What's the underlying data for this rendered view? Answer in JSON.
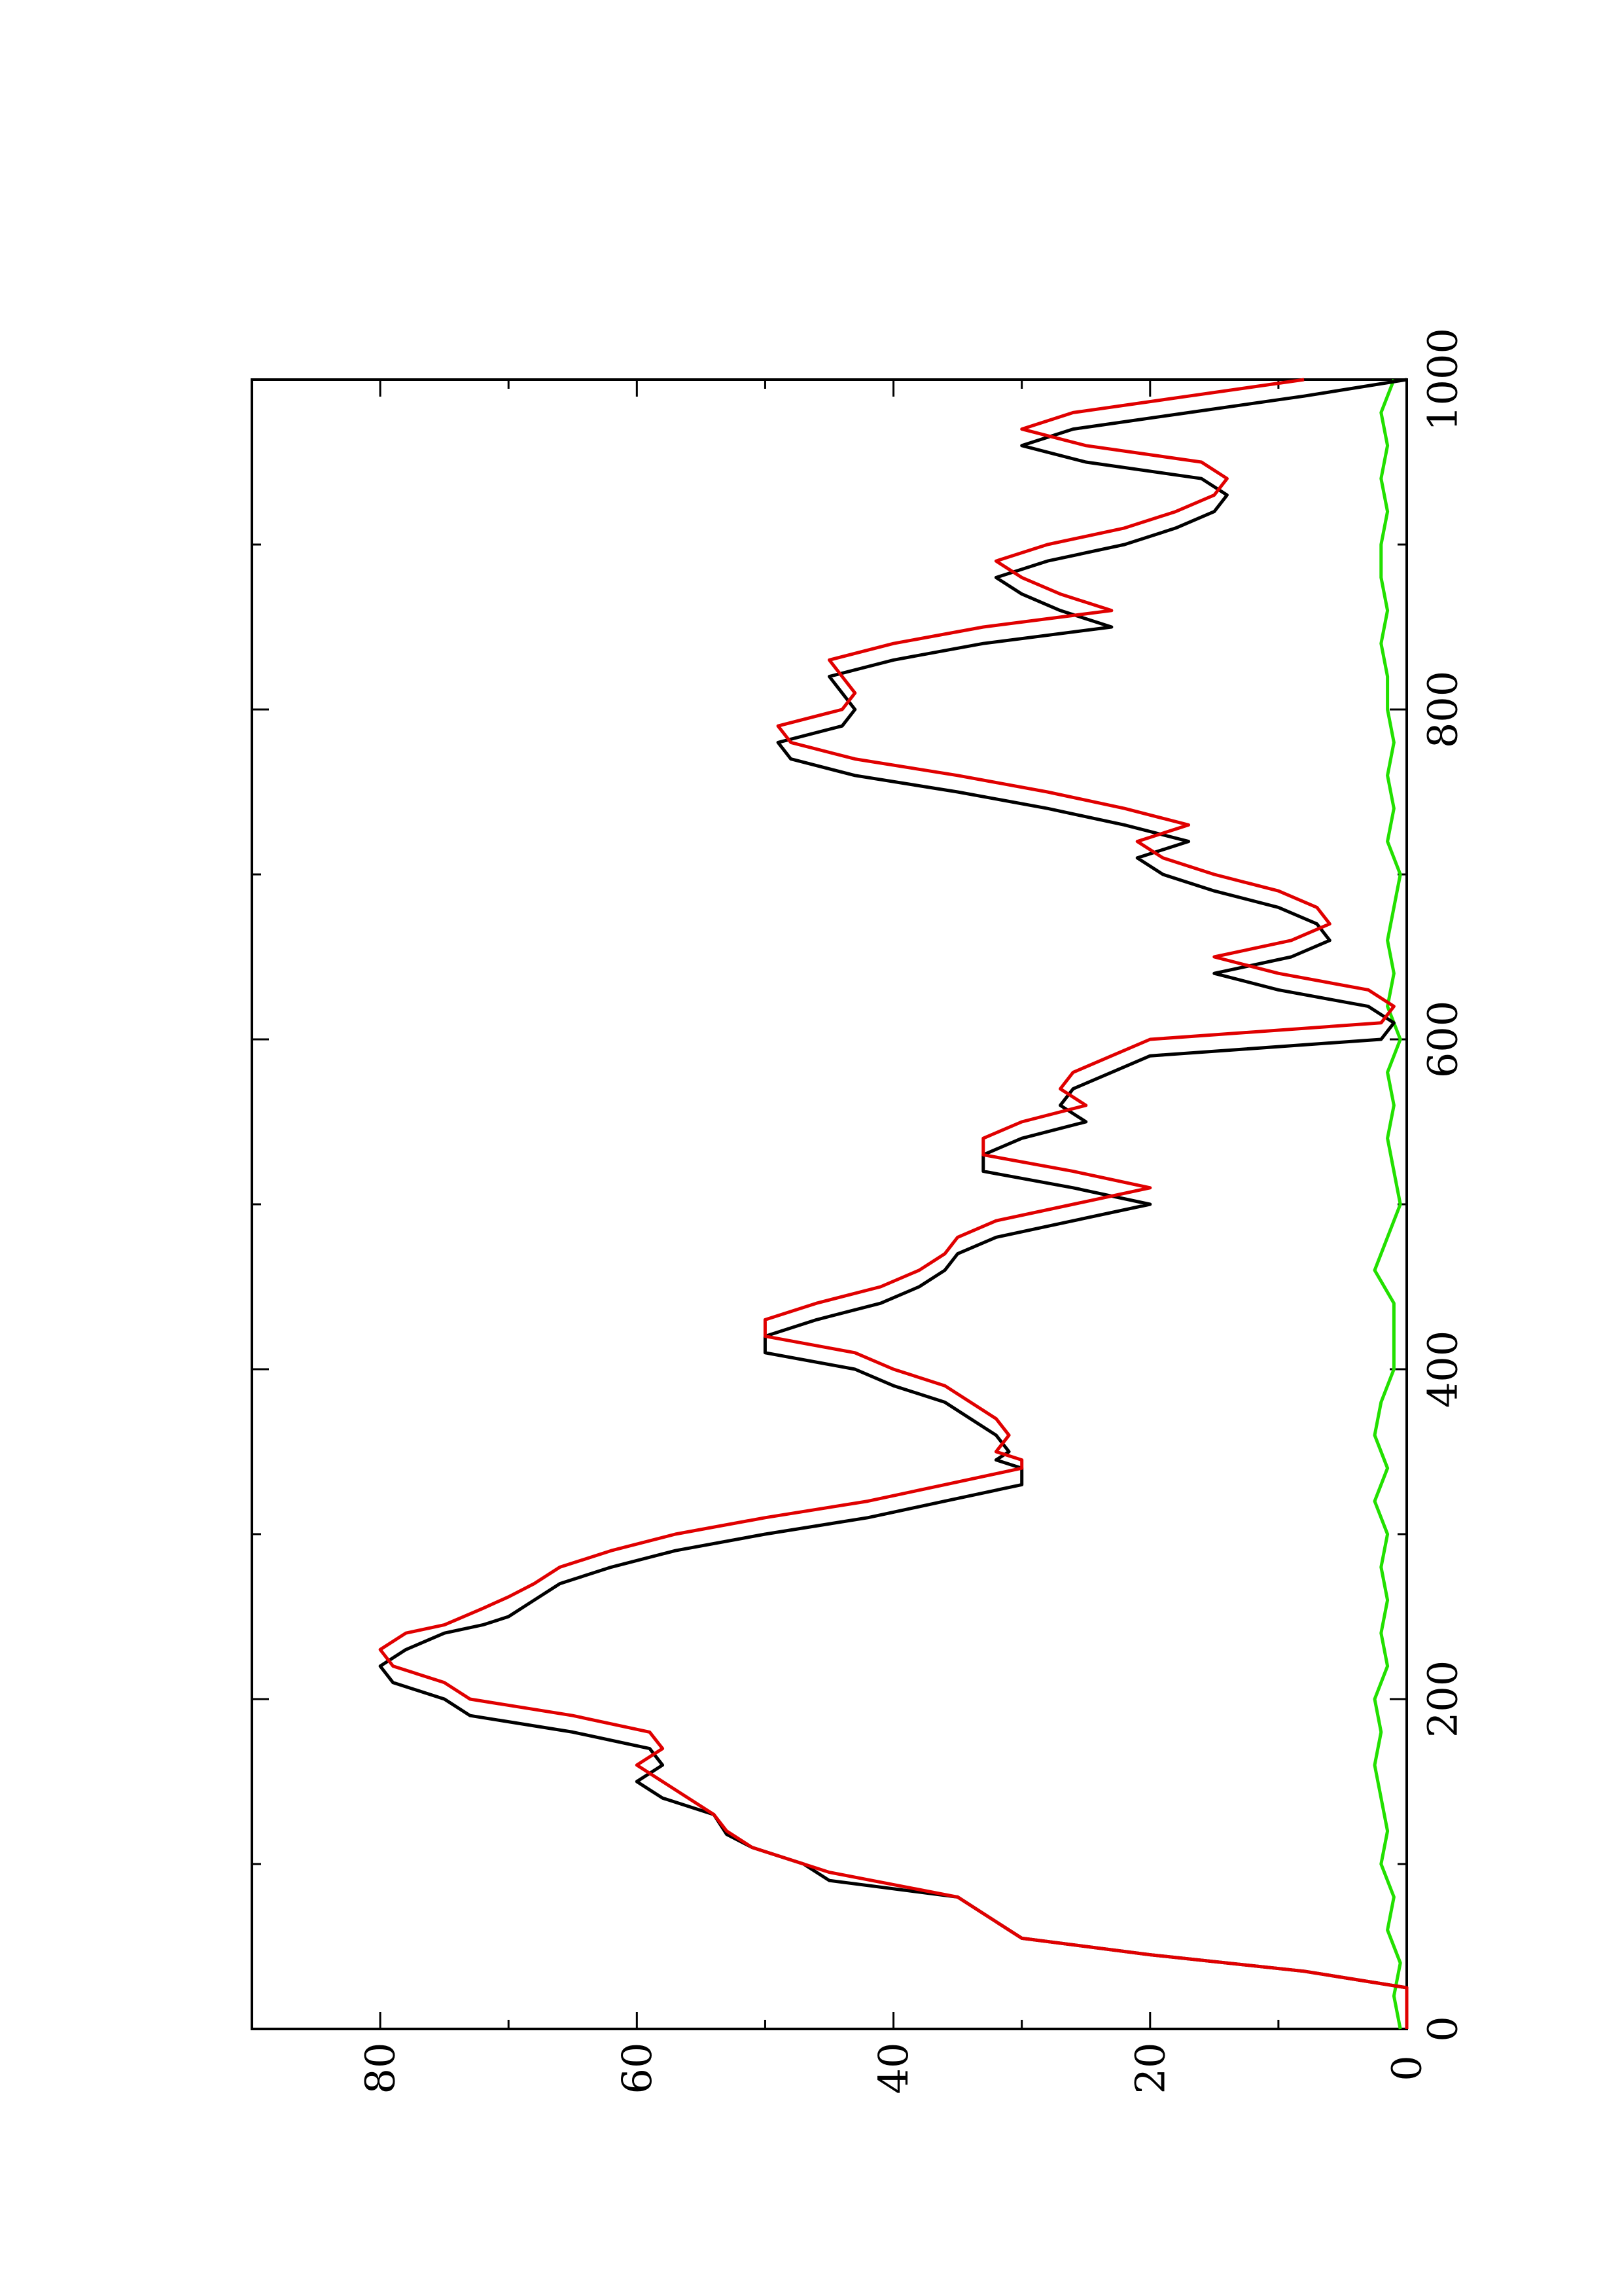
{
  "chart_data": {
    "type": "line",
    "orientation": "rotated 90° counter-clockwise",
    "title": "",
    "xlabel": "",
    "ylabel": "",
    "xlim": [
      0,
      1000
    ],
    "ylim": [
      0,
      90
    ],
    "x_ticks": [
      0,
      200,
      400,
      600,
      800,
      1000
    ],
    "y_ticks": [
      0,
      20,
      40,
      60,
      80
    ],
    "grid": false,
    "legend": "none",
    "colors": {
      "black": "#000000",
      "red": "#e00000",
      "green": "#22e000"
    },
    "series": [
      {
        "color": "#000000",
        "x": [
          0,
          25,
          35,
          45,
          55,
          65,
          80,
          90,
          100,
          110,
          118,
          130,
          140,
          145,
          150,
          160,
          170,
          180,
          190,
          200,
          210,
          220,
          230,
          240,
          245,
          250,
          260,
          270,
          280,
          290,
          300,
          310,
          320,
          330,
          340,
          345,
          350,
          360,
          370,
          380,
          390,
          400,
          410,
          420,
          430,
          440,
          450,
          460,
          470,
          480,
          490,
          500,
          510,
          520,
          530,
          540,
          550,
          560,
          570,
          580,
          590,
          600,
          610,
          620,
          630,
          640,
          650,
          660,
          670,
          680,
          690,
          700,
          710,
          720,
          730,
          740,
          750,
          760,
          770,
          780,
          790,
          800,
          810,
          820,
          830,
          840,
          850,
          860,
          870,
          880,
          890,
          900,
          910,
          920,
          930,
          940,
          950,
          960,
          970,
          980,
          990,
          1000
        ],
        "y": [
          0,
          0,
          8,
          20,
          30,
          32,
          35,
          45,
          47,
          51,
          53,
          54,
          58,
          59,
          60,
          58,
          59,
          65,
          73,
          75,
          79,
          80,
          78,
          75,
          72,
          70,
          68,
          66,
          62,
          57,
          50,
          42,
          36,
          30,
          30,
          32,
          31,
          32,
          34,
          36,
          40,
          43,
          50,
          50,
          46,
          41,
          38,
          36,
          35,
          32,
          26,
          20,
          26,
          33,
          33,
          30,
          25,
          27,
          26,
          23,
          20,
          2,
          1,
          3,
          10,
          15,
          9,
          6,
          7,
          10,
          15,
          19,
          21,
          17,
          22,
          28,
          35,
          43,
          48,
          49,
          44,
          43,
          44,
          45,
          40,
          33,
          23,
          27,
          30,
          32,
          28,
          22,
          18,
          15,
          14,
          16,
          25,
          30,
          26,
          17,
          8,
          0
        ]
      },
      {
        "color": "#e00000",
        "x": [
          0,
          25,
          35,
          45,
          55,
          65,
          80,
          95,
          100,
          110,
          120,
          130,
          150,
          155,
          160,
          170,
          180,
          190,
          200,
          210,
          220,
          230,
          240,
          245,
          255,
          262,
          270,
          280,
          290,
          300,
          310,
          320,
          330,
          340,
          345,
          350,
          360,
          370,
          380,
          390,
          400,
          410,
          420,
          430,
          440,
          450,
          460,
          470,
          480,
          490,
          500,
          510,
          520,
          530,
          540,
          550,
          560,
          570,
          580,
          590,
          600,
          610,
          620,
          630,
          640,
          650,
          660,
          670,
          680,
          690,
          700,
          710,
          720,
          730,
          740,
          750,
          760,
          770,
          780,
          790,
          800,
          810,
          820,
          830,
          840,
          850,
          860,
          870,
          880,
          890,
          900,
          910,
          920,
          930,
          940,
          950,
          960,
          970,
          980,
          990,
          1000
        ],
        "y": [
          0,
          0,
          8,
          20,
          30,
          32,
          35,
          45,
          47,
          51,
          53,
          54,
          58,
          59,
          60,
          58,
          59,
          65,
          73,
          75,
          79,
          80,
          78,
          75,
          72,
          70,
          68,
          66,
          62,
          57,
          50,
          42,
          36,
          30,
          30,
          32,
          31,
          32,
          34,
          36,
          40,
          43,
          50,
          50,
          46,
          41,
          38,
          36,
          35,
          32,
          26,
          20,
          26,
          33,
          33,
          30,
          25,
          27,
          26,
          23,
          20,
          2,
          1,
          3,
          10,
          15,
          9,
          6,
          7,
          10,
          15,
          19,
          21,
          17,
          22,
          28,
          35,
          43,
          48,
          49,
          44,
          43,
          44,
          45,
          40,
          33,
          23,
          27,
          30,
          32,
          28,
          22,
          18,
          15,
          14,
          16,
          25,
          30,
          26,
          17,
          8
        ]
      },
      {
        "color": "#22e000",
        "x": [
          0,
          20,
          40,
          60,
          80,
          100,
          120,
          140,
          160,
          180,
          200,
          220,
          240,
          260,
          280,
          300,
          320,
          340,
          360,
          380,
          400,
          420,
          440,
          460,
          480,
          500,
          520,
          540,
          560,
          580,
          600,
          620,
          640,
          660,
          680,
          700,
          720,
          740,
          760,
          780,
          800,
          820,
          840,
          860,
          880,
          900,
          920,
          940,
          960,
          980,
          1000
        ],
        "y": [
          0.5,
          1,
          0.5,
          1.5,
          1,
          2,
          1.5,
          2,
          2.5,
          2,
          2.5,
          1.5,
          2,
          1.5,
          2,
          1.5,
          2.5,
          1.5,
          2.5,
          2,
          1,
          1,
          1,
          2.5,
          1.5,
          0.5,
          1,
          1.5,
          1,
          1.5,
          0.5,
          1.5,
          1,
          1.5,
          1,
          0.5,
          1.5,
          1,
          1.5,
          1,
          1.5,
          1.5,
          2,
          1.5,
          2,
          2,
          1.5,
          2,
          1.5,
          2,
          1
        ]
      }
    ]
  }
}
